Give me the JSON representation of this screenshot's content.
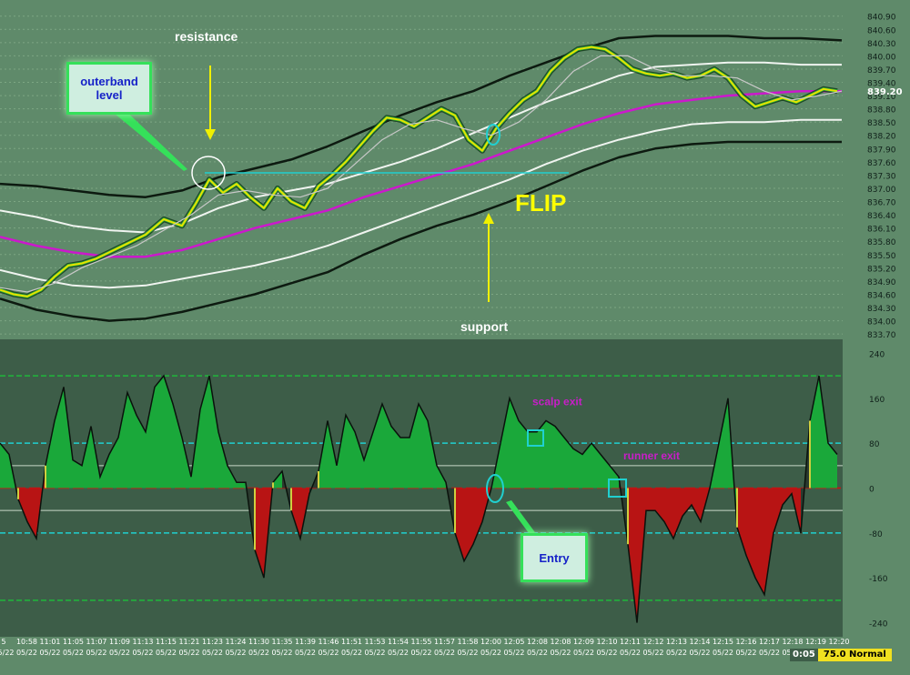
{
  "chart_data": [
    {
      "type": "line",
      "panel": "price",
      "y_ticks": [
        "840.90",
        "840.60",
        "840.30",
        "840.00",
        "839.70",
        "839.40",
        "839.10",
        "838.80",
        "838.50",
        "838.20",
        "837.90",
        "837.60",
        "837.30",
        "837.00",
        "836.70",
        "836.40",
        "836.10",
        "835.80",
        "835.50",
        "835.20",
        "834.90",
        "834.60",
        "834.30",
        "834.00",
        "833.70"
      ],
      "ylim": [
        833.6,
        841.1
      ],
      "last_price_label": "839.20",
      "last_price": 839.2,
      "resistance_level": 837.35,
      "series": [
        {
          "key": "outer_upper",
          "color": "#0d1a10",
          "x": [
            0,
            40,
            80,
            120,
            160,
            200,
            240,
            280,
            320,
            360,
            400,
            440,
            480,
            520,
            560,
            600,
            640,
            680,
            720,
            760,
            800,
            840,
            880,
            925
          ],
          "values": [
            837.1,
            837.05,
            836.95,
            836.85,
            836.8,
            836.95,
            837.25,
            837.45,
            837.65,
            837.95,
            838.3,
            838.65,
            838.95,
            839.2,
            839.55,
            839.85,
            840.15,
            840.4,
            840.45,
            840.45,
            840.45,
            840.4,
            840.4,
            840.35
          ]
        },
        {
          "key": "inner_upper",
          "color": "#f0f4f0",
          "x": [
            0,
            40,
            80,
            120,
            160,
            200,
            240,
            280,
            320,
            360,
            400,
            440,
            480,
            520,
            560,
            600,
            640,
            680,
            720,
            760,
            800,
            840,
            880,
            925
          ],
          "values": [
            836.5,
            836.35,
            836.15,
            836.05,
            836.0,
            836.2,
            836.55,
            836.8,
            836.95,
            837.1,
            837.35,
            837.6,
            837.9,
            838.25,
            838.6,
            838.95,
            839.25,
            839.55,
            839.75,
            839.8,
            839.85,
            839.85,
            839.8,
            839.8
          ]
        },
        {
          "key": "middle_average",
          "color": "#cc18cc",
          "x": [
            0,
            40,
            80,
            120,
            160,
            200,
            240,
            280,
            320,
            360,
            400,
            440,
            480,
            520,
            560,
            600,
            640,
            680,
            720,
            760,
            800,
            840,
            880,
            925
          ],
          "values": [
            835.9,
            835.7,
            835.55,
            835.45,
            835.45,
            835.6,
            835.85,
            836.1,
            836.3,
            836.5,
            836.8,
            837.05,
            837.3,
            837.55,
            837.85,
            838.15,
            838.45,
            838.7,
            838.9,
            839.0,
            839.1,
            839.15,
            839.2,
            839.2
          ]
        },
        {
          "key": "inner_lower",
          "color": "#f0f4f0",
          "x": [
            0,
            40,
            80,
            120,
            160,
            200,
            240,
            280,
            320,
            360,
            400,
            440,
            480,
            520,
            560,
            600,
            640,
            680,
            720,
            760,
            800,
            840,
            880,
            925
          ],
          "values": [
            835.15,
            834.95,
            834.8,
            834.75,
            834.8,
            834.95,
            835.1,
            835.25,
            835.45,
            835.7,
            836.0,
            836.3,
            836.6,
            836.9,
            837.2,
            837.55,
            837.85,
            838.1,
            838.3,
            838.45,
            838.5,
            838.5,
            838.55,
            838.55
          ]
        },
        {
          "key": "outer_lower",
          "color": "#0d1a10",
          "x": [
            0,
            40,
            80,
            120,
            160,
            200,
            240,
            280,
            320,
            360,
            400,
            440,
            480,
            520,
            560,
            600,
            640,
            680,
            720,
            760,
            800,
            840,
            880,
            925
          ],
          "values": [
            834.5,
            834.25,
            834.1,
            834.0,
            834.05,
            834.2,
            834.4,
            834.6,
            834.85,
            835.1,
            835.5,
            835.85,
            836.15,
            836.4,
            836.7,
            837.05,
            837.4,
            837.7,
            837.9,
            838.0,
            838.05,
            838.05,
            838.05,
            838.05
          ]
        },
        {
          "key": "price",
          "color": "#e8e000",
          "x": [
            0,
            15,
            30,
            45,
            60,
            75,
            90,
            105,
            120,
            140,
            160,
            180,
            200,
            215,
            230,
            245,
            260,
            275,
            290,
            305,
            320,
            335,
            350,
            365,
            380,
            395,
            410,
            425,
            440,
            455,
            470,
            485,
            500,
            515,
            530,
            545,
            560,
            575,
            590,
            605,
            620,
            635,
            650,
            665,
            680,
            695,
            710,
            725,
            740,
            755,
            770,
            785,
            800,
            815,
            830,
            845,
            860,
            875,
            890,
            905,
            920
          ],
          "values": [
            834.7,
            834.6,
            834.55,
            834.7,
            835.0,
            835.25,
            835.3,
            835.4,
            835.55,
            835.75,
            835.95,
            836.3,
            836.15,
            836.65,
            837.2,
            836.9,
            837.1,
            836.8,
            836.55,
            837.0,
            836.7,
            836.55,
            837.05,
            837.3,
            837.6,
            837.95,
            838.3,
            838.6,
            838.55,
            838.4,
            838.6,
            838.8,
            838.65,
            838.1,
            837.85,
            838.35,
            838.7,
            839.0,
            839.2,
            839.65,
            839.95,
            840.15,
            840.2,
            840.15,
            839.95,
            839.7,
            839.6,
            839.55,
            839.6,
            839.5,
            839.55,
            839.7,
            839.5,
            839.1,
            838.85,
            838.95,
            839.05,
            838.95,
            839.1,
            839.25,
            839.2
          ]
        },
        {
          "key": "smoothed_price",
          "color": "#c8c8c8",
          "x": [
            0,
            30,
            60,
            90,
            120,
            150,
            180,
            210,
            240,
            270,
            300,
            330,
            360,
            390,
            420,
            450,
            480,
            510,
            540,
            570,
            600,
            630,
            660,
            690,
            720,
            750,
            780,
            810,
            840,
            870,
            900,
            925
          ],
          "values": [
            834.75,
            834.65,
            834.85,
            835.2,
            835.45,
            835.7,
            836.05,
            836.4,
            836.85,
            836.95,
            836.85,
            836.8,
            837.0,
            837.55,
            838.1,
            838.45,
            838.55,
            838.35,
            838.2,
            838.5,
            839.0,
            839.65,
            840.0,
            840.0,
            839.7,
            839.55,
            839.55,
            839.5,
            839.2,
            839.0,
            839.1,
            839.2
          ]
        }
      ]
    },
    {
      "type": "area",
      "panel": "oscillator",
      "y_ticks": [
        "240",
        "160",
        "80",
        "0",
        "-80",
        "-160",
        "-240"
      ],
      "ylim": [
        -265,
        265
      ],
      "levels": [
        200,
        80,
        0,
        -80,
        -200
      ],
      "colors": {
        "positive": "#1aa83a",
        "negative": "#b81414",
        "neutral": "#2b3a2f",
        "flip": "#cfcf40"
      },
      "x": [
        0,
        10,
        20,
        30,
        40,
        50,
        60,
        70,
        80,
        90,
        100,
        110,
        120,
        130,
        140,
        150,
        160,
        170,
        180,
        190,
        200,
        210,
        220,
        230,
        240,
        250,
        260,
        270,
        280,
        290,
        300,
        310,
        320,
        330,
        340,
        350,
        360,
        370,
        380,
        390,
        400,
        410,
        420,
        430,
        440,
        450,
        460,
        470,
        480,
        490,
        500,
        510,
        520,
        530,
        540,
        550,
        560,
        570,
        580,
        590,
        600,
        610,
        620,
        630,
        640,
        650,
        660,
        670,
        680,
        690,
        700,
        710,
        720,
        730,
        740,
        750,
        760,
        770,
        780,
        790,
        800,
        810,
        820,
        830,
        840,
        850,
        860,
        870,
        880,
        890,
        900,
        910,
        920
      ],
      "values": [
        80,
        60,
        -20,
        -60,
        -90,
        40,
        120,
        180,
        50,
        40,
        110,
        20,
        60,
        90,
        170,
        130,
        100,
        180,
        200,
        150,
        90,
        20,
        140,
        200,
        100,
        40,
        10,
        10,
        -110,
        -160,
        10,
        30,
        -40,
        -90,
        -10,
        30,
        120,
        40,
        130,
        100,
        50,
        100,
        150,
        110,
        90,
        90,
        150,
        120,
        40,
        10,
        -80,
        -130,
        -100,
        -60,
        0,
        80,
        160,
        120,
        100,
        100,
        120,
        110,
        90,
        70,
        60,
        80,
        60,
        40,
        20,
        -100,
        -240,
        -40,
        -40,
        -60,
        -90,
        -50,
        -30,
        -60,
        0,
        80,
        160,
        -70,
        -120,
        -160,
        -190,
        -80,
        -30,
        -10,
        -80,
        120,
        200,
        80,
        60
      ],
      "annotations": [
        {
          "text": "scalp exit",
          "color": "#c81ec8",
          "x": 585,
          "y": 118
        },
        {
          "text": "runner exit",
          "color": "#c81ec8",
          "x": 685,
          "y": 22
        }
      ]
    }
  ],
  "time_axis": {
    "labels": [
      "5",
      "10:58",
      "11:01",
      "11:05",
      "11:07",
      "11:09",
      "11:13",
      "11:15",
      "11:21",
      "11:23",
      "11:24",
      "11:30",
      "11:35",
      "11:39",
      "11:46",
      "11:51",
      "11:53",
      "11:54",
      "11:55",
      "11:57",
      "11:58",
      "12:00",
      "12:05",
      "12:08",
      "12:08",
      "12:09",
      "12:10",
      "12:11",
      "12:12",
      "12:13",
      "12:14",
      "12:15",
      "12:16",
      "12:17",
      "12:18",
      "12:19",
      "12:20"
    ],
    "date_label": "05/22"
  },
  "annotations": {
    "resistance": "resistance",
    "support": "support",
    "flip": "FLIP",
    "outerband": "outerband level",
    "entry": "Entry"
  },
  "status": {
    "time": "0:05",
    "mode": "75.0 Normal"
  },
  "colors": {
    "panel_bg": "#5f8a6a",
    "osc_bg": "#3d5d48",
    "dotted": "#7da683",
    "label": "#ffffff",
    "arrow": "#f0f000",
    "cyan": "#20d0d0",
    "flip": "#ffff00",
    "status_bg": "#f0e020"
  }
}
